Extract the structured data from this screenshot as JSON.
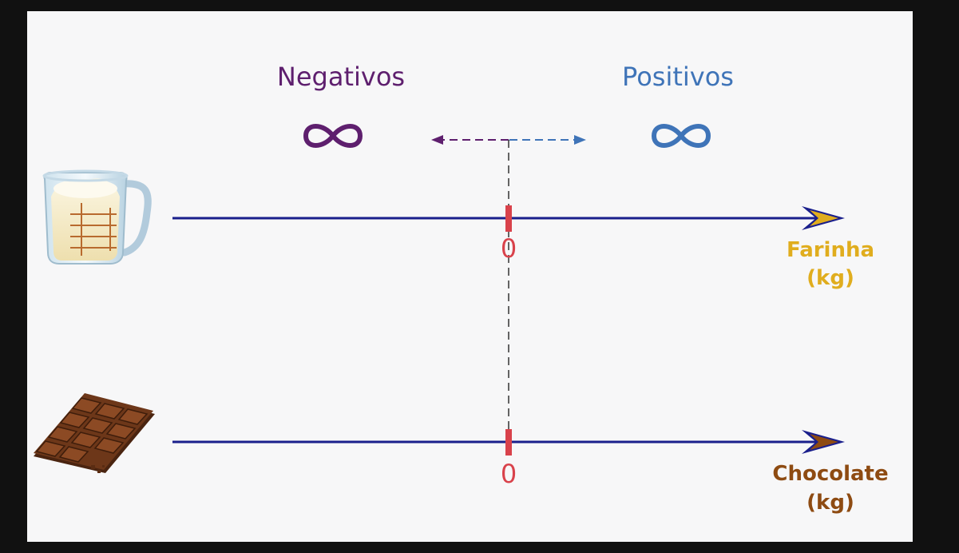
{
  "labels": {
    "negative": "Negativos",
    "positive": "Positivos",
    "infinity_symbol": "∞"
  },
  "axes": [
    {
      "name": "farinha",
      "zero_label": "0",
      "title_line1": "Farinha",
      "title_line2": "(kg)",
      "title_color": "#e0ad1e",
      "icon": "flour-measuring-cup-icon"
    },
    {
      "name": "chocolate",
      "zero_label": "0",
      "title_line1": "Chocolate",
      "title_line2": "(kg)",
      "title_color": "#8e4b12",
      "icon": "chocolate-bar-icon"
    }
  ],
  "colors": {
    "axis_line": "#1a1f8c",
    "tick": "#d9424b",
    "negative": "#5e1f6e",
    "positive": "#3f74b8",
    "dashed_line": "#333333"
  }
}
